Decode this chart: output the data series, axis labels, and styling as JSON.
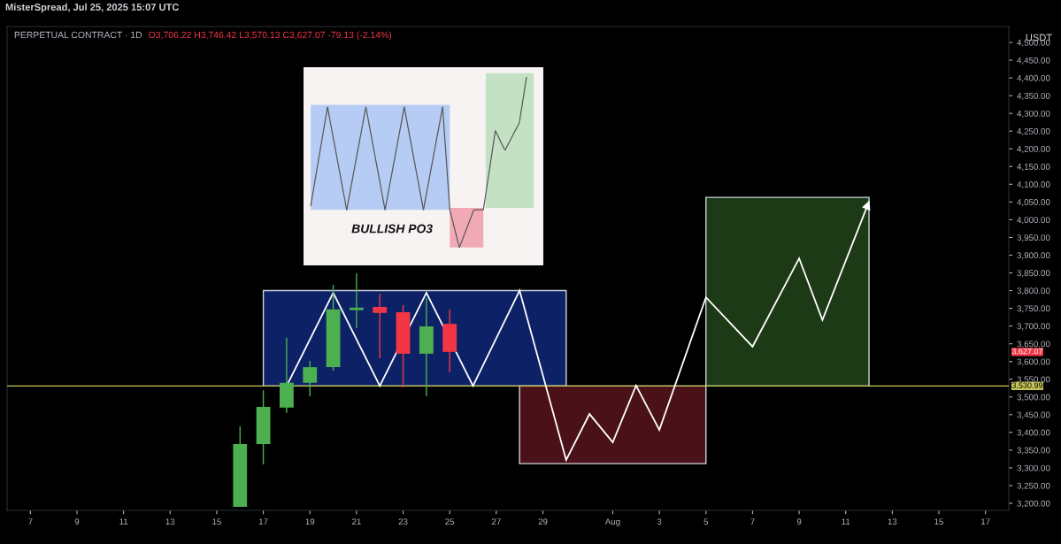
{
  "chart_data": {
    "type": "candlestick",
    "title": "PERPETUAL CONTRACT · 1D",
    "subtitle": "O3,706.22 H3,746.42 L3,570.13 C3,627.07 -79.13 (-2.14%)",
    "ylabel": "USDT",
    "annotations": [
      "MisterSpread, Jul 25, 2025 15:07 UTC",
      "BULLISH PO3",
      "3,627.07"
    ],
    "x": [
      "2025-07-16",
      "2025-07-17",
      "2025-07-18",
      "2025-07-19",
      "2025-07-20",
      "2025-07-21",
      "2025-07-22",
      "2025-07-23",
      "2025-07-24",
      "2025-07-25"
    ],
    "ohlc": [
      [
        3190,
        3417,
        3190,
        3367
      ],
      [
        3367,
        3519,
        3310,
        3472
      ],
      [
        3470,
        3667,
        3455,
        3540
      ],
      [
        3540,
        3602,
        3502,
        3584
      ],
      [
        3584,
        3816,
        3574,
        3747
      ],
      [
        3745,
        3849,
        3694,
        3752
      ],
      [
        3754,
        3791,
        3609,
        3737
      ],
      [
        3739,
        3759,
        3527,
        3622
      ],
      [
        3622,
        3779,
        3502,
        3699
      ],
      [
        3706.22,
        3746.42,
        3570.13,
        3627.07
      ]
    ],
    "colors": [
      "#4caf50",
      "#4caf50",
      "#4caf50",
      "#4caf50",
      "#4caf50",
      "#4caf50",
      "#f23645",
      "#f23645",
      "#4caf50",
      "#f23645"
    ],
    "ref_lines": [
      {
        "axis": "y",
        "value": 3530.99,
        "label": "3,530.99",
        "color": "#c8c85a"
      }
    ],
    "xlim": [
      "2025-07-06",
      "2025-08-18"
    ],
    "xticks": [
      {
        "value": "2025-07-07",
        "label": "7"
      },
      {
        "value": "2025-07-09",
        "label": "9"
      },
      {
        "value": "2025-07-11",
        "label": "11"
      },
      {
        "value": "2025-07-13",
        "label": "13"
      },
      {
        "value": "2025-07-15",
        "label": "15"
      },
      {
        "value": "2025-07-17",
        "label": "17"
      },
      {
        "value": "2025-07-19",
        "label": "19"
      },
      {
        "value": "2025-07-21",
        "label": "21"
      },
      {
        "value": "2025-07-23",
        "label": "23"
      },
      {
        "value": "2025-07-25",
        "label": "25"
      },
      {
        "value": "2025-07-27",
        "label": "27"
      },
      {
        "value": "2025-07-29",
        "label": "29"
      },
      {
        "value": "2025-08-01",
        "label": "Aug"
      },
      {
        "value": "2025-08-03",
        "label": "3"
      },
      {
        "value": "2025-08-05",
        "label": "5"
      },
      {
        "value": "2025-08-07",
        "label": "7"
      },
      {
        "value": "2025-08-09",
        "label": "9"
      },
      {
        "value": "2025-08-11",
        "label": "11"
      },
      {
        "value": "2025-08-13",
        "label": "13"
      },
      {
        "value": "2025-08-15",
        "label": "15"
      },
      {
        "value": "2025-08-17",
        "label": "17"
      }
    ],
    "ylim": [
      3180,
      4545
    ],
    "yticks": [
      {
        "value": 3200,
        "label": "3,200.00"
      },
      {
        "value": 3250,
        "label": "3,250.00"
      },
      {
        "value": 3300,
        "label": "3,300.00"
      },
      {
        "value": 3350,
        "label": "3,350.00"
      },
      {
        "value": 3400,
        "label": "3,400.00"
      },
      {
        "value": 3450,
        "label": "3,450.00"
      },
      {
        "value": 3500,
        "label": "3,500.00"
      },
      {
        "value": 3550,
        "label": "3,550.00"
      },
      {
        "value": 3600,
        "label": "3,600.00"
      },
      {
        "value": 3650,
        "label": "3,650.00"
      },
      {
        "value": 3700,
        "label": "3,700.00"
      },
      {
        "value": 3750,
        "label": "3,750.00"
      },
      {
        "value": 3800,
        "label": "3,800.00"
      },
      {
        "value": 3850,
        "label": "3,850.00"
      },
      {
        "value": 3900,
        "label": "3,900.00"
      },
      {
        "value": 3950,
        "label": "3,950.00"
      },
      {
        "value": 4000,
        "label": "4,000.00"
      },
      {
        "value": 4050,
        "label": "4,050.00"
      },
      {
        "value": 4100,
        "label": "4,100.00"
      },
      {
        "value": 4150,
        "label": "4,150.00"
      },
      {
        "value": 4200,
        "label": "4,200.00"
      },
      {
        "value": 4250,
        "label": "4,250.00"
      },
      {
        "value": 4300,
        "label": "4,300.00"
      },
      {
        "value": 4350,
        "label": "4,350.00"
      },
      {
        "value": 4400,
        "label": "4,400.00"
      },
      {
        "value": 4450,
        "label": "4,450.00"
      },
      {
        "value": 4500,
        "label": "4,500.00"
      }
    ],
    "legend": false
  }
}
